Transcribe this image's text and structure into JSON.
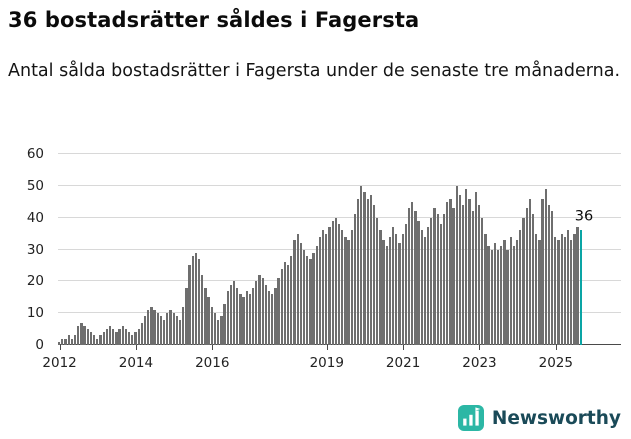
{
  "header": {
    "title": "36 bostadsrätter såldes i Fagersta",
    "subtitle": "Antal sålda bostadsrätter i Fagersta under de senaste tre månaderna."
  },
  "chart_data": {
    "type": "bar",
    "title": "36 bostadsrätter såldes i Fagersta",
    "description": "Antal sålda bostadsrätter i Fagersta under de senaste tre månaderna.",
    "x_unit": "month",
    "x_start": "2012-01",
    "x_end": "2025-09",
    "ylim": [
      0,
      60
    ],
    "yticks": [
      0,
      10,
      20,
      30,
      40,
      50,
      60
    ],
    "xtick_labels": [
      "2012",
      "2014",
      "2016",
      "2019",
      "2021",
      "2023",
      "2025"
    ],
    "xtick_years": [
      2012,
      2014,
      2016,
      2019,
      2021,
      2023,
      2025
    ],
    "grid": "horizontal",
    "legend": "none",
    "bar_color": "#6e6e6e",
    "highlight_color": "#0aa5a5",
    "gridline_color": "#d8d8d8",
    "axis_color": "#4a4a4a",
    "highlight_value": 36,
    "highlight_label": "36",
    "values": [
      1,
      2,
      2,
      3,
      2,
      3,
      6,
      7,
      6,
      5,
      4,
      3,
      2,
      3,
      4,
      5,
      6,
      5,
      4,
      5,
      6,
      5,
      4,
      3,
      4,
      5,
      7,
      9,
      11,
      12,
      11,
      10,
      9,
      8,
      10,
      11,
      10,
      9,
      8,
      12,
      18,
      25,
      28,
      29,
      27,
      22,
      18,
      15,
      12,
      10,
      8,
      9,
      13,
      17,
      19,
      20,
      18,
      16,
      15,
      17,
      16,
      18,
      20,
      22,
      21,
      19,
      17,
      16,
      18,
      21,
      24,
      26,
      25,
      28,
      33,
      35,
      32,
      30,
      28,
      27,
      29,
      31,
      34,
      36,
      35,
      37,
      39,
      40,
      38,
      36,
      34,
      33,
      36,
      41,
      46,
      50,
      48,
      46,
      47,
      44,
      40,
      36,
      33,
      31,
      34,
      37,
      35,
      32,
      35,
      38,
      43,
      45,
      42,
      39,
      36,
      34,
      37,
      40,
      43,
      41,
      38,
      41,
      45,
      46,
      43,
      50,
      47,
      44,
      49,
      46,
      42,
      48,
      44,
      40,
      35,
      31,
      30,
      32,
      30,
      31,
      33,
      30,
      34,
      31,
      33,
      36,
      40,
      43,
      46,
      41,
      35,
      33,
      46,
      49,
      44,
      42,
      34,
      33,
      35,
      34,
      36,
      33,
      35,
      37,
      36
    ]
  },
  "footer": {
    "brand": "Newsworthy",
    "logo_color": "#2cb7a5",
    "brand_text_color": "#1a4a58"
  }
}
